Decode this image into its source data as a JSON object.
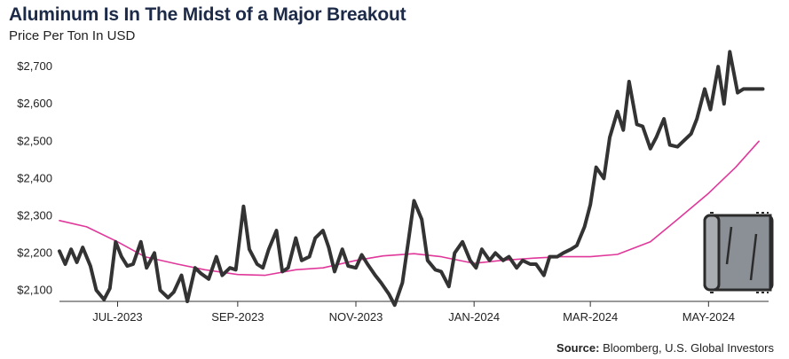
{
  "title": "Aluminum Is In The Midst of a Major Breakout",
  "subtitle": "Price Per Ton In USD",
  "source_label": "Source:",
  "source_text": "Bloomberg, U.S. Global Investors",
  "colors": {
    "price": "#333333",
    "moving_average": "#e0389a",
    "title": "#1c2a48",
    "icon": "#8b9096"
  },
  "icon": "aluminum-roll-icon",
  "chart_data": {
    "type": "line",
    "title": "Aluminum Is In The Midst of a Major Breakout",
    "subtitle": "Price Per Ton In USD",
    "ylim": [
      2070,
      2760
    ],
    "yticks": [
      2100,
      2200,
      2300,
      2400,
      2500,
      2600,
      2700
    ],
    "ytick_labels": [
      "$2,100",
      "$2,200",
      "$2,300",
      "$2,400",
      "$2,500",
      "$2,600",
      "$2,700"
    ],
    "xlim": [
      "2023-06-01",
      "2024-06-01"
    ],
    "xticks": [
      "2023-07-01",
      "2023-09-01",
      "2023-11-01",
      "2024-01-01",
      "2024-03-01",
      "2024-05-01"
    ],
    "xtick_labels": [
      "JUL-2023",
      "SEP-2023",
      "NOV-2023",
      "JAN-2024",
      "MAR-2024",
      "MAY-2024"
    ],
    "grid": false,
    "series": [
      {
        "color": "#333333",
        "x": [
          "2023-06-01",
          "2023-06-04",
          "2023-06-07",
          "2023-06-10",
          "2023-06-13",
          "2023-06-17",
          "2023-06-20",
          "2023-06-24",
          "2023-06-27",
          "2023-06-30",
          "2023-07-03",
          "2023-07-06",
          "2023-07-09",
          "2023-07-13",
          "2023-07-16",
          "2023-07-20",
          "2023-07-23",
          "2023-07-27",
          "2023-07-30",
          "2023-08-03",
          "2023-08-06",
          "2023-08-10",
          "2023-08-13",
          "2023-08-17",
          "2023-08-21",
          "2023-08-24",
          "2023-08-28",
          "2023-08-31",
          "2023-09-04",
          "2023-09-07",
          "2023-09-11",
          "2023-09-14",
          "2023-09-17",
          "2023-09-21",
          "2023-09-24",
          "2023-09-27",
          "2023-10-01",
          "2023-10-04",
          "2023-10-08",
          "2023-10-11",
          "2023-10-15",
          "2023-10-18",
          "2023-10-21",
          "2023-10-25",
          "2023-10-28",
          "2023-11-01",
          "2023-11-04",
          "2023-11-07",
          "2023-11-11",
          "2023-11-14",
          "2023-11-18",
          "2023-11-21",
          "2023-11-25",
          "2023-11-28",
          "2023-12-01",
          "2023-12-05",
          "2023-12-08",
          "2023-12-12",
          "2023-12-15",
          "2023-12-19",
          "2023-12-22",
          "2023-12-26",
          "2023-12-30",
          "2024-01-02",
          "2024-01-05",
          "2024-01-09",
          "2024-01-12",
          "2024-01-16",
          "2024-01-19",
          "2024-01-23",
          "2024-01-26",
          "2024-01-30",
          "2024-02-02",
          "2024-02-06",
          "2024-02-09",
          "2024-02-13",
          "2024-02-16",
          "2024-02-20",
          "2024-02-23",
          "2024-02-27",
          "2024-03-01",
          "2024-03-04",
          "2024-03-08",
          "2024-03-11",
          "2024-03-15",
          "2024-03-18",
          "2024-03-21",
          "2024-03-25",
          "2024-03-28",
          "2024-04-01",
          "2024-04-04",
          "2024-04-08",
          "2024-04-11",
          "2024-04-15",
          "2024-04-18",
          "2024-04-22",
          "2024-04-25",
          "2024-04-29",
          "2024-05-02",
          "2024-05-06",
          "2024-05-09",
          "2024-05-12",
          "2024-05-16",
          "2024-05-19",
          "2024-05-23",
          "2024-05-26",
          "2024-05-29"
        ],
        "values": [
          2205,
          2170,
          2210,
          2175,
          2215,
          2165,
          2100,
          2075,
          2105,
          2230,
          2190,
          2165,
          2170,
          2230,
          2160,
          2200,
          2100,
          2080,
          2095,
          2140,
          2070,
          2160,
          2145,
          2130,
          2190,
          2140,
          2160,
          2155,
          2325,
          2210,
          2170,
          2160,
          2210,
          2260,
          2150,
          2160,
          2240,
          2180,
          2190,
          2240,
          2260,
          2215,
          2150,
          2210,
          2165,
          2160,
          2195,
          2170,
          2140,
          2120,
          2090,
          2060,
          2120,
          2230,
          2340,
          2290,
          2180,
          2155,
          2150,
          2110,
          2200,
          2230,
          2180,
          2160,
          2210,
          2180,
          2200,
          2180,
          2190,
          2160,
          2180,
          2170,
          2170,
          2140,
          2190,
          2190,
          2200,
          2210,
          2220,
          2270,
          2330,
          2430,
          2400,
          2510,
          2580,
          2530,
          2660,
          2545,
          2540,
          2480,
          2510,
          2560,
          2490,
          2485,
          2500,
          2520,
          2560,
          2640,
          2585,
          2700,
          2600,
          2740,
          2630,
          2640,
          2640,
          2640,
          2640
        ]
      },
      {
        "color": "#e0389a",
        "x": [
          "2023-06-01",
          "2023-06-15",
          "2023-07-01",
          "2023-07-15",
          "2023-08-01",
          "2023-08-15",
          "2023-09-01",
          "2023-09-15",
          "2023-10-01",
          "2023-10-15",
          "2023-11-01",
          "2023-11-15",
          "2023-12-01",
          "2023-12-15",
          "2024-01-01",
          "2024-01-15",
          "2024-02-01",
          "2024-02-15",
          "2024-03-01",
          "2024-03-15",
          "2024-04-01",
          "2024-04-15",
          "2024-05-01",
          "2024-05-15",
          "2024-05-27"
        ],
        "values": [
          2287,
          2270,
          2230,
          2190,
          2170,
          2155,
          2142,
          2140,
          2155,
          2160,
          2180,
          2192,
          2198,
          2190,
          2172,
          2180,
          2186,
          2190,
          2190,
          2196,
          2230,
          2290,
          2360,
          2430,
          2500
        ]
      }
    ]
  }
}
